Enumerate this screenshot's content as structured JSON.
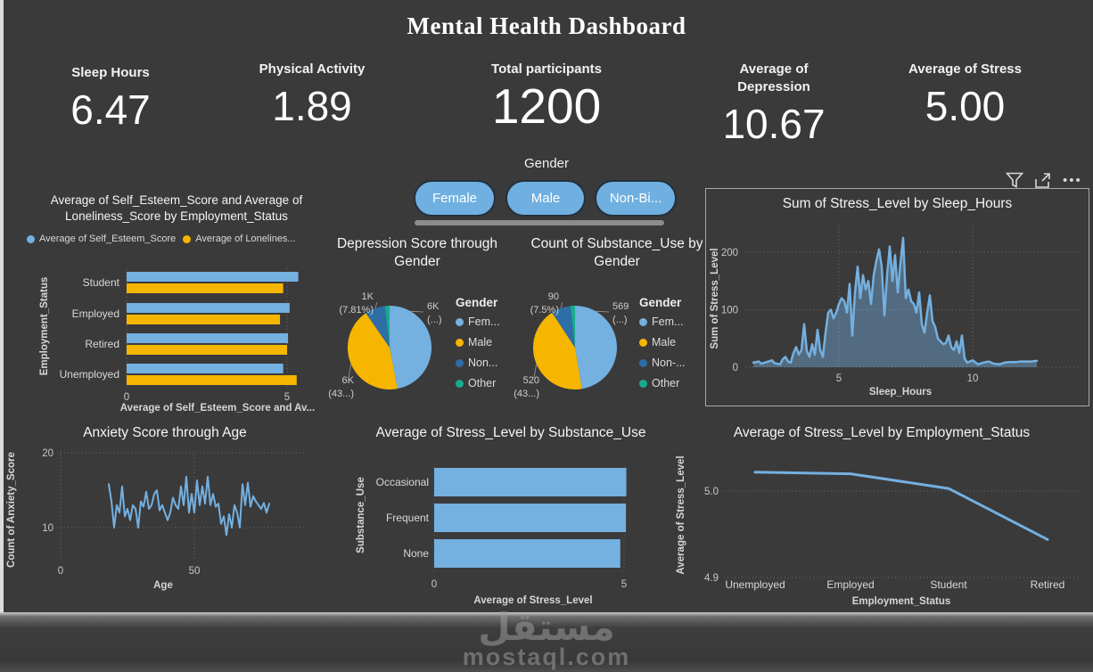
{
  "title": "Mental Health Dashboard",
  "kpis": [
    {
      "label": "Sleep Hours",
      "value": "6.47"
    },
    {
      "label": "Physical Activity",
      "value": "1.89"
    },
    {
      "label": "Total participants",
      "value": "1200"
    },
    {
      "label": "Average of Depression",
      "value": "10.67"
    },
    {
      "label": "Average of Stress",
      "value": "5.00"
    }
  ],
  "slicer": {
    "label": "Gender",
    "options": [
      "Female",
      "Male",
      "Non-Bi..."
    ]
  },
  "toolbar": {
    "icons": [
      "filter",
      "focus-mode",
      "more-options"
    ]
  },
  "colors": {
    "background": "#3a3a3b",
    "blue": "#74b0e0",
    "yellow": "#f6b600",
    "dark_blue": "#2d6ea6",
    "teal": "#17ab8e",
    "grid": "#7a7a7a",
    "axis_text": "#c8c8c8"
  },
  "watermark": {
    "text_ar": "مستقل",
    "text_en": "mostaql.com"
  },
  "chart_data": [
    {
      "id": "self-esteem-loneliness-bar",
      "type": "bar",
      "orientation": "horizontal",
      "title": "Average of Self_Esteem_Score and Average of Loneliness_Score by Employment_Status",
      "categories": [
        "Student",
        "Employed",
        "Retired",
        "Unemployed"
      ],
      "series": [
        {
          "name": "Average of Self_Esteem_Score",
          "color": "#74b0e0",
          "values": [
            5.35,
            5.08,
            5.03,
            4.88
          ]
        },
        {
          "name": "Average of Lonelines...",
          "color": "#f6b600",
          "values": [
            4.88,
            4.78,
            5.0,
            5.3
          ]
        }
      ],
      "xticks": [
        0,
        5
      ],
      "xlim": [
        0,
        5.9
      ],
      "xlabel": "Average of Self_Esteem_Score and Av...",
      "ylabel": "Employment_Status"
    },
    {
      "id": "depression-by-gender-pie",
      "type": "pie",
      "title": "Depression Score through Gender",
      "legend_title": "Gender",
      "legend_position": "right",
      "slices": [
        {
          "label": "Fem...",
          "value": 47.0,
          "color": "#74b0e0",
          "callout": [
            "6K",
            "(...)"
          ]
        },
        {
          "label": "Male",
          "value": 43.4,
          "color": "#f6b600",
          "callout": [
            "6K",
            "(43...)"
          ]
        },
        {
          "label": "Non...",
          "value": 7.81,
          "color": "#2d6ea6",
          "callout": [
            "1K",
            "(7.81%)"
          ]
        },
        {
          "label": "Other",
          "value": 1.79,
          "color": "#17ab8e",
          "callout": null
        }
      ]
    },
    {
      "id": "substance-use-by-gender-pie",
      "type": "pie",
      "title": "Count of Substance_Use by Gender",
      "legend_title": "Gender",
      "legend_position": "right",
      "slices": [
        {
          "label": "Fem...",
          "value": 569,
          "color": "#74b0e0",
          "callout": [
            "569",
            "(...)"
          ]
        },
        {
          "label": "Male",
          "value": 520,
          "color": "#f6b600",
          "callout": [
            "520",
            "(43...)"
          ]
        },
        {
          "label": "Non-...",
          "value": 90,
          "color": "#2d6ea6",
          "callout": [
            "90",
            "(7.5%)"
          ]
        },
        {
          "label": "Other",
          "value": 21,
          "color": "#17ab8e",
          "callout": null
        }
      ]
    },
    {
      "id": "stress-by-sleep-area",
      "type": "area",
      "title": "Sum of Stress_Level by Sleep_Hours",
      "xlabel": "Sleep_Hours",
      "ylabel": "Sum of Stress_Level",
      "xticks": [
        5,
        10
      ],
      "yticks": [
        0,
        100,
        200
      ],
      "xlim": [
        1.6,
        12.6
      ],
      "ylim": [
        0,
        250
      ],
      "points": [
        [
          1.8,
          8
        ],
        [
          2.0,
          10
        ],
        [
          2.1,
          6
        ],
        [
          2.3,
          9
        ],
        [
          2.5,
          12
        ],
        [
          2.6,
          7
        ],
        [
          2.8,
          5
        ],
        [
          2.9,
          14
        ],
        [
          3.0,
          18
        ],
        [
          3.1,
          10
        ],
        [
          3.2,
          8
        ],
        [
          3.3,
          25
        ],
        [
          3.4,
          35
        ],
        [
          3.5,
          22
        ],
        [
          3.6,
          30
        ],
        [
          3.7,
          75
        ],
        [
          3.8,
          28
        ],
        [
          3.9,
          18
        ],
        [
          4.0,
          40
        ],
        [
          4.1,
          22
        ],
        [
          4.2,
          65
        ],
        [
          4.3,
          30
        ],
        [
          4.4,
          18
        ],
        [
          4.5,
          60
        ],
        [
          4.6,
          95
        ],
        [
          4.7,
          100
        ],
        [
          4.8,
          85
        ],
        [
          4.9,
          95
        ],
        [
          5.0,
          110
        ],
        [
          5.1,
          120
        ],
        [
          5.2,
          115
        ],
        [
          5.3,
          95
        ],
        [
          5.4,
          145
        ],
        [
          5.5,
          55
        ],
        [
          5.6,
          130
        ],
        [
          5.7,
          175
        ],
        [
          5.8,
          120
        ],
        [
          5.9,
          160
        ],
        [
          6.0,
          135
        ],
        [
          6.1,
          150
        ],
        [
          6.2,
          110
        ],
        [
          6.3,
          160
        ],
        [
          6.4,
          185
        ],
        [
          6.5,
          205
        ],
        [
          6.6,
          175
        ],
        [
          6.7,
          90
        ],
        [
          6.8,
          160
        ],
        [
          6.9,
          210
        ],
        [
          7.0,
          150
        ],
        [
          7.1,
          195
        ],
        [
          7.2,
          130
        ],
        [
          7.3,
          180
        ],
        [
          7.4,
          225
        ],
        [
          7.5,
          120
        ],
        [
          7.6,
          135
        ],
        [
          7.7,
          115
        ],
        [
          7.8,
          110
        ],
        [
          7.9,
          95
        ],
        [
          8.0,
          130
        ],
        [
          8.1,
          75
        ],
        [
          8.2,
          60
        ],
        [
          8.3,
          95
        ],
        [
          8.4,
          125
        ],
        [
          8.5,
          80
        ],
        [
          8.6,
          70
        ],
        [
          8.7,
          50
        ],
        [
          8.8,
          45
        ],
        [
          8.9,
          40
        ],
        [
          9.0,
          42
        ],
        [
          9.1,
          55
        ],
        [
          9.2,
          35
        ],
        [
          9.3,
          30
        ],
        [
          9.4,
          45
        ],
        [
          9.5,
          25
        ],
        [
          9.6,
          55
        ],
        [
          9.7,
          15
        ],
        [
          9.8,
          8
        ],
        [
          10.0,
          12
        ],
        [
          10.2,
          5
        ],
        [
          10.4,
          8
        ],
        [
          10.6,
          10
        ],
        [
          10.8,
          6
        ],
        [
          11.0,
          5
        ],
        [
          11.2,
          8
        ],
        [
          11.4,
          9
        ],
        [
          11.6,
          9
        ],
        [
          11.8,
          10
        ],
        [
          12.0,
          10
        ],
        [
          12.2,
          10
        ],
        [
          12.4,
          11
        ]
      ]
    },
    {
      "id": "anxiety-by-age-line",
      "type": "line",
      "title": "Anxiety Score through Age",
      "xlabel": "Age",
      "ylabel": "Count of Anxiety_Score",
      "xticks": [
        0,
        50
      ],
      "yticks": [
        10,
        20
      ],
      "points": [
        [
          18,
          15.8
        ],
        [
          19,
          13.5
        ],
        [
          20,
          10.0
        ],
        [
          21,
          13.0
        ],
        [
          22,
          12.0
        ],
        [
          23,
          15.5
        ],
        [
          24,
          11.5
        ],
        [
          25,
          12.5
        ],
        [
          26,
          11.0
        ],
        [
          27,
          13.0
        ],
        [
          28,
          12.5
        ],
        [
          29,
          10.0
        ],
        [
          30,
          13.5
        ],
        [
          31,
          12.8
        ],
        [
          32,
          14.8
        ],
        [
          33,
          12.5
        ],
        [
          34,
          13.0
        ],
        [
          35,
          14.5
        ],
        [
          36,
          15.0
        ],
        [
          37,
          12.3
        ],
        [
          38,
          13.0
        ],
        [
          39,
          12.0
        ],
        [
          40,
          11.0
        ],
        [
          41,
          12.0
        ],
        [
          42,
          14.0
        ],
        [
          43,
          13.0
        ],
        [
          44,
          12.5
        ],
        [
          45,
          15.5
        ],
        [
          46,
          13.0
        ],
        [
          47,
          16.8
        ],
        [
          48,
          12.0
        ],
        [
          49,
          14.5
        ],
        [
          50,
          12.0
        ],
        [
          51,
          16.3
        ],
        [
          52,
          13.0
        ],
        [
          53,
          15.5
        ],
        [
          54,
          13.2
        ],
        [
          55,
          16.8
        ],
        [
          56,
          13.0
        ],
        [
          57,
          14.5
        ],
        [
          58,
          12.8
        ],
        [
          59,
          13.2
        ],
        [
          60,
          10.5
        ],
        [
          61,
          11.5
        ],
        [
          62,
          9.0
        ],
        [
          63,
          11.8
        ],
        [
          64,
          10.0
        ],
        [
          65,
          13.0
        ],
        [
          66,
          12.0
        ],
        [
          67,
          10.0
        ],
        [
          68,
          15.8
        ],
        [
          69,
          13.0
        ],
        [
          70,
          16.0
        ],
        [
          71,
          12.8
        ],
        [
          72,
          14.2
        ],
        [
          73,
          13.5
        ],
        [
          74,
          13.0
        ],
        [
          75,
          12.5
        ],
        [
          76,
          13.3
        ],
        [
          77,
          12.0
        ],
        [
          78,
          13.2
        ]
      ]
    },
    {
      "id": "stress-by-substance-bar",
      "type": "bar",
      "orientation": "horizontal",
      "title": "Average of Stress_Level by Substance_Use",
      "categories": [
        "Occasional",
        "Frequent",
        "None"
      ],
      "values": [
        5.06,
        5.05,
        4.9
      ],
      "color": "#74b0e0",
      "xticks": [
        0,
        5
      ],
      "xlabel": "Average of Stress_Level",
      "ylabel": "Substance_Use"
    },
    {
      "id": "stress-by-employment-line",
      "type": "line",
      "title": "Average of Stress_Level by Employment_Status",
      "categories": [
        "Unemployed",
        "Employed",
        "Student",
        "Retired"
      ],
      "values": [
        5.022,
        5.02,
        5.003,
        4.944
      ],
      "yticks": [
        "5.0",
        "4.9"
      ],
      "xlabel": "Employment_Status",
      "ylabel": "Average of Stress_Level"
    }
  ]
}
